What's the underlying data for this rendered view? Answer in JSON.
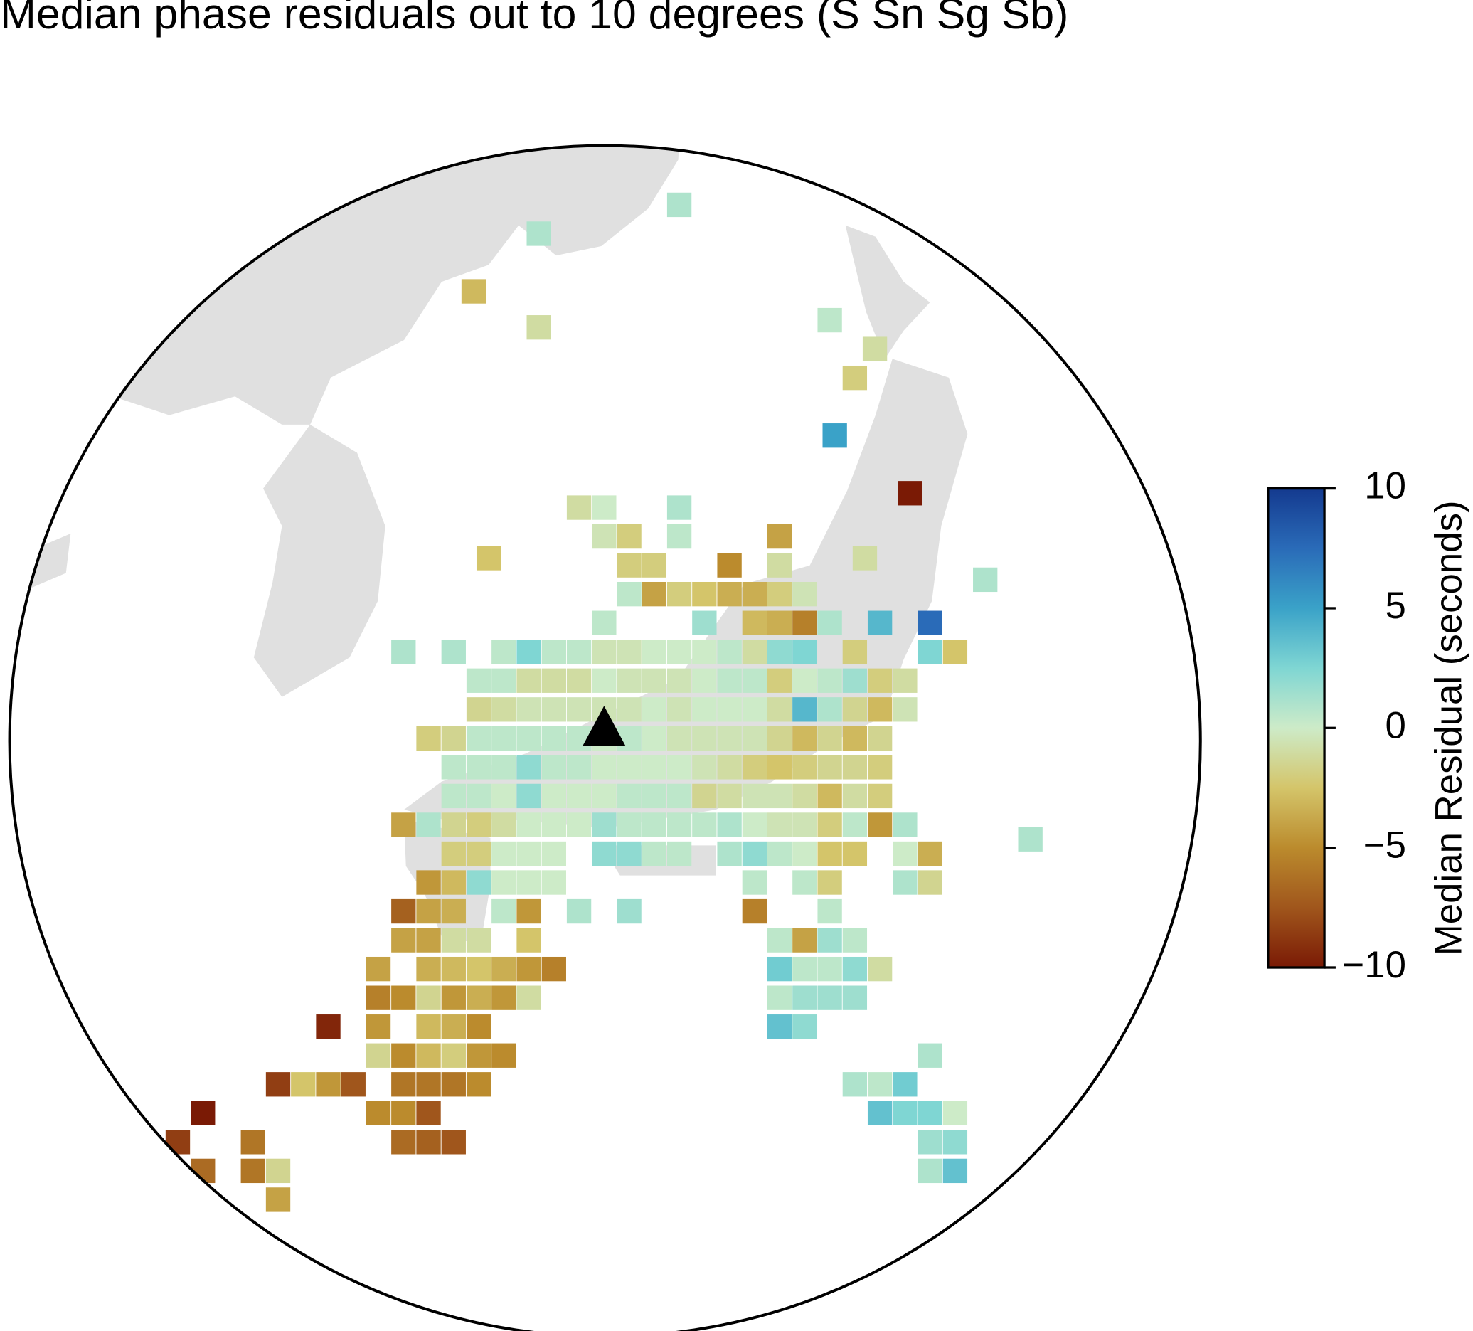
{
  "chart_data": {
    "type": "grid-map",
    "title": "Median phase residuals out to 10 degrees (S Sn Sg Sb)",
    "colorbar_label": "Median Residual (seconds)",
    "clim": [
      -10,
      10
    ],
    "colorbar_ticks": [
      {
        "value": -10,
        "label": "−10"
      },
      {
        "value": -5,
        "label": "−5"
      },
      0,
      5,
      10
    ],
    "colors": [
      "#7a1a05",
      "#a0561c",
      "#bb8b2d",
      "#d4c56a",
      "#cdebc8",
      "#7fd6d3",
      "#3aa2c8",
      "#2a6bb8",
      "#143a8f"
    ],
    "station": {
      "lat": 35.15,
      "lon": 133
    },
    "rows": [
      {
        "lat": 42.4,
        "lon0": 134.5,
        "values": [
          1
        ]
      },
      {
        "lat": 42.0,
        "lon0": 131.7,
        "values": [
          1
        ]
      },
      {
        "lat": 41.2,
        "lon0": 130.4,
        "values": [
          -3
        ]
      },
      {
        "lat": 40.7,
        "lon0": 131.7,
        "values": [
          -1
        ]
      },
      {
        "lat": 40.8,
        "lon0": 137.5,
        "values": [
          0.5
        ]
      },
      {
        "lat": 40.4,
        "lon0": 138.4,
        "values": [
          -1
        ]
      },
      {
        "lat": 40.0,
        "lon0": 138.0,
        "values": [
          -2
        ]
      },
      {
        "lat": 39.2,
        "lon0": 137.6,
        "values": [
          5
        ]
      },
      {
        "lat": 38.4,
        "lon0": 139.1,
        "values": [
          -10
        ]
      },
      {
        "lat": 37.2,
        "lon0": 140.6,
        "values": [
          1
        ]
      },
      {
        "lat": 37.5,
        "lon0": 130.7,
        "values": [
          -2.5
        ]
      },
      {
        "lat": 37.5,
        "lon0": 138.2,
        "values": [
          -1
        ]
      },
      {
        "lat": 38.2,
        "lon0": 132.5,
        "values": [
          -1,
          0,
          null,
          null,
          1
        ]
      },
      {
        "lat": 37.8,
        "lon0": 133,
        "values": [
          -0.5,
          -2,
          null,
          0.5,
          null,
          null,
          null,
          -4
        ]
      },
      {
        "lat": 37.4,
        "lon0": 133.5,
        "values": [
          -2,
          -2,
          null,
          null,
          -5,
          null,
          -1
        ]
      },
      {
        "lat": 37.0,
        "lon0": 133.5,
        "values": [
          0.5,
          -4,
          -2,
          -2.5,
          -3.5,
          -3.5,
          -2,
          -0.5
        ]
      },
      {
        "lat": 36.6,
        "lon0": 133,
        "values": [
          0.5,
          null,
          null,
          null,
          1.5,
          null,
          -3,
          -3.5,
          -5.5,
          1,
          null,
          4,
          null,
          7.5
        ]
      },
      {
        "lat": 36.2,
        "lon0": 129,
        "values": [
          1,
          null,
          1,
          null,
          0.5,
          2.5,
          0.5,
          0.5,
          -0.5,
          -0.5,
          0,
          0,
          0,
          0.5,
          -1,
          2,
          2.5,
          null,
          -2,
          null,
          null,
          2.5,
          -2.5
        ]
      },
      {
        "lat": 35.8,
        "lon0": 130.5,
        "values": [
          0.5,
          0.5,
          -1,
          -1,
          -1,
          0,
          -0.5,
          -0.5,
          -0.5,
          0,
          0.5,
          0.5,
          -2,
          0,
          0.5,
          1.5,
          -2,
          -1
        ]
      },
      {
        "lat": 35.4,
        "lon0": 130.5,
        "values": [
          -1.5,
          -1,
          -0.5,
          -0.5,
          -0.5,
          -0.5,
          -0.5,
          0,
          -0.5,
          0,
          0,
          0,
          -1,
          4,
          1,
          -1.5,
          -3,
          -0.5
        ]
      },
      {
        "lat": 35.0,
        "lon0": 129.5,
        "values": [
          -2,
          -1.5,
          0.5,
          0.5,
          0.5,
          0.5,
          0.5,
          0,
          0.5,
          0,
          -0.5,
          -0.5,
          -0.5,
          -0.5,
          -1.5,
          -3,
          -1.5,
          -3,
          -1.5
        ]
      },
      {
        "lat": 34.6,
        "lon0": 130,
        "values": [
          0.5,
          0.5,
          0.5,
          2,
          0.5,
          0.5,
          0,
          0,
          0,
          0,
          -0.5,
          -1,
          -2,
          -2.5,
          -2,
          -1.5,
          -1.5,
          -2
        ]
      },
      {
        "lat": 34.2,
        "lon0": 130,
        "values": [
          0.5,
          0.5,
          0,
          2,
          0,
          0,
          0,
          0.5,
          0.5,
          0.5,
          -1.5,
          -1,
          -0.5,
          -0.5,
          -1,
          -3,
          -1,
          -2
        ]
      },
      {
        "lat": 33.8,
        "lon0": 129,
        "values": [
          -4,
          1,
          -1.5,
          -2,
          -1,
          0,
          0,
          0,
          1.5,
          0.5,
          0.5,
          0.5,
          0.5,
          1,
          0,
          -0.5,
          -0.5,
          -2,
          0.5,
          -4.5,
          1
        ]
      },
      {
        "lat": 33.6,
        "lon0": 141.5,
        "values": [
          1
        ]
      },
      {
        "lat": 33.4,
        "lon0": 130,
        "values": [
          -2,
          -2,
          0,
          0,
          0,
          null,
          2,
          2,
          0.5,
          0.5,
          null,
          1,
          2,
          0.5,
          0,
          -2.5,
          -2.5,
          null,
          0,
          -3.5
        ]
      },
      {
        "lat": 33.0,
        "lon0": 129.5,
        "values": [
          -4.5,
          -3,
          2,
          0,
          0,
          0,
          null,
          null,
          null,
          null,
          null,
          null,
          null,
          0.5,
          null,
          0.5,
          -2,
          null,
          null,
          1,
          -1.5
        ]
      },
      {
        "lat": 32.6,
        "lon0": 129,
        "values": [
          -7,
          -4,
          -3.5,
          null,
          0.5,
          -4.5,
          null,
          1,
          null,
          1.5,
          null,
          null,
          null,
          null,
          -5.5,
          null,
          null,
          0.5
        ]
      },
      {
        "lat": 32.2,
        "lon0": 129,
        "values": [
          -4,
          -4,
          -1,
          -1,
          null,
          -2.5,
          null,
          null,
          null,
          null,
          null,
          null,
          null,
          null,
          null,
          0.5,
          -4,
          1.5,
          0.5
        ]
      },
      {
        "lat": 31.8,
        "lon0": 128.5,
        "values": [
          -4,
          null,
          -3.5,
          -3,
          -2.5,
          -3.5,
          -4.5,
          -5.5,
          null,
          null,
          null,
          null,
          null,
          null,
          null,
          null,
          3,
          0.5,
          0.5,
          2,
          -1
        ]
      },
      {
        "lat": 31.4,
        "lon0": 128.5,
        "values": [
          -5.5,
          -5,
          -1.5,
          -4.5,
          -3.5,
          -4.5,
          -1,
          null,
          null,
          null,
          null,
          null,
          null,
          null,
          null,
          null,
          0.5,
          1.5,
          1.5,
          1.5
        ]
      },
      {
        "lat": 31.0,
        "lon0": 127.5,
        "values": [
          -9.5,
          null,
          -4.5,
          null,
          -3,
          -3.5,
          -5,
          null,
          null,
          null,
          null,
          null,
          null,
          null,
          null,
          null,
          null,
          null,
          3.5,
          2
        ]
      },
      {
        "lat": 30.6,
        "lon0": 128.5,
        "values": [
          -1.5,
          -5,
          -3,
          -2,
          -4.5,
          -5,
          null,
          null,
          null,
          null,
          null,
          null,
          null,
          null,
          null,
          null,
          null,
          null,
          null,
          null,
          null,
          null,
          1
        ]
      },
      {
        "lat": 30.2,
        "lon0": 126.5,
        "values": [
          -8.5,
          -2.5,
          -4.5,
          -7.5,
          null,
          -6,
          -6,
          -6,
          -5,
          null,
          null,
          null,
          null,
          null,
          null,
          null,
          null,
          null,
          null,
          null,
          null,
          null,
          null,
          1,
          0.5,
          3
        ]
      },
      {
        "lat": 29.8,
        "lon0": 125,
        "values": [
          -10,
          null,
          null,
          null,
          null,
          null,
          null,
          -5,
          -5,
          -7.5,
          null,
          null,
          null,
          null,
          null,
          null,
          null,
          null,
          null,
          null,
          null,
          null,
          null,
          null,
          null,
          null,
          null,
          3.5,
          2.5,
          2.5,
          0
        ]
      },
      {
        "lat": 29.4,
        "lon0": 124.5,
        "values": [
          -8.5,
          null,
          null,
          -6,
          null,
          null,
          null,
          null,
          null,
          -6.5,
          -7,
          -7.5,
          null,
          null,
          null,
          null,
          null,
          null,
          null,
          null,
          null,
          null,
          null,
          null,
          null,
          null,
          null,
          null,
          null,
          null,
          1.5,
          2
        ]
      },
      {
        "lat": 29.0,
        "lon0": 125,
        "values": [
          -6.5,
          null,
          -6,
          -1.5,
          null,
          null,
          null,
          null,
          null,
          null,
          null,
          null,
          null,
          null,
          null,
          null,
          null,
          null,
          null,
          null,
          null,
          null,
          null,
          null,
          null,
          null,
          null,
          null,
          null,
          1,
          3.5
        ]
      },
      {
        "lat": 28.6,
        "lon0": 126.5,
        "values": [
          -4
        ]
      }
    ]
  }
}
